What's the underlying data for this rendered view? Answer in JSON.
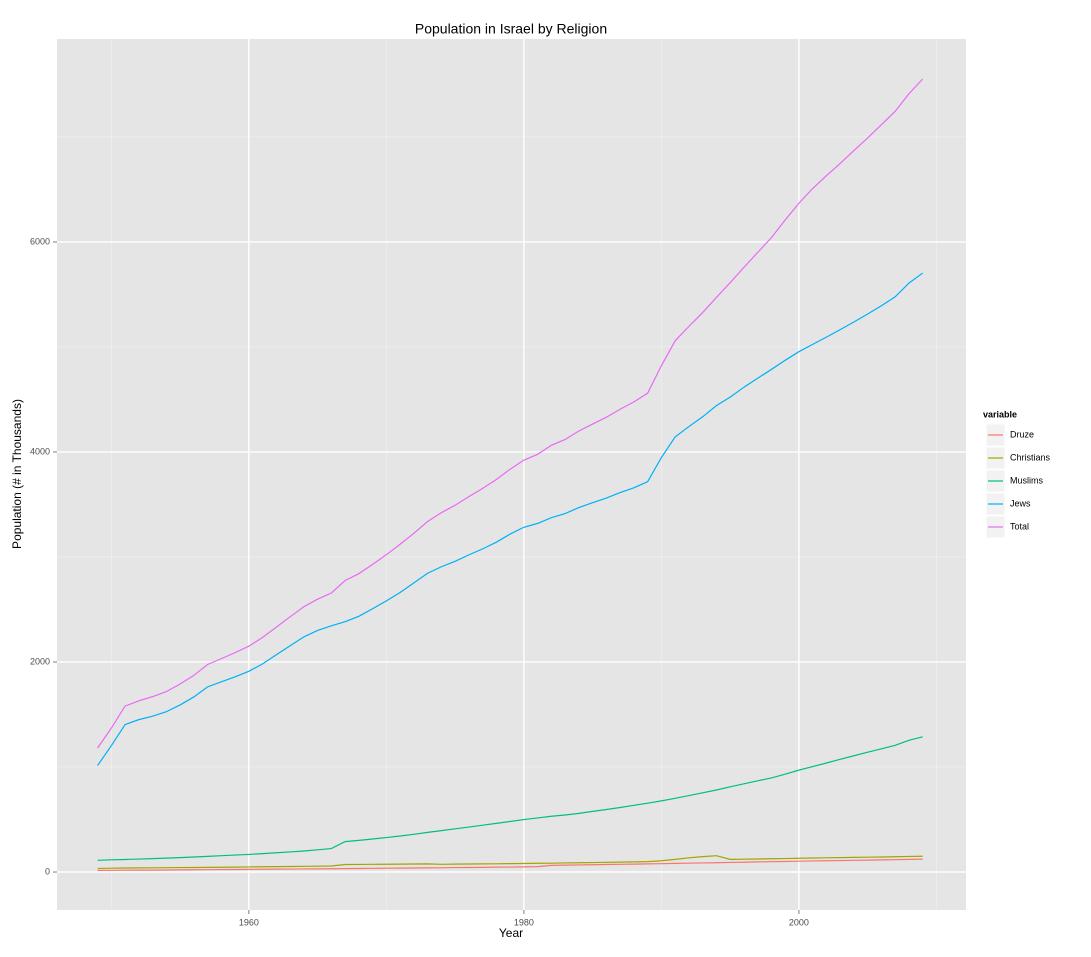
{
  "chart_data": {
    "type": "line",
    "title": "Population in Israel by Religion",
    "x_label": "Year",
    "y_label": "Population (# in Thousands)",
    "legend_title": "variable",
    "legend_position": "right",
    "grid": true,
    "x": [
      1949,
      1950,
      1951,
      1952,
      1953,
      1954,
      1955,
      1956,
      1957,
      1958,
      1959,
      1960,
      1961,
      1962,
      1963,
      1964,
      1965,
      1966,
      1967,
      1968,
      1969,
      1970,
      1971,
      1972,
      1973,
      1974,
      1975,
      1976,
      1977,
      1978,
      1979,
      1980,
      1981,
      1982,
      1983,
      1984,
      1985,
      1986,
      1987,
      1988,
      1989,
      1990,
      1991,
      1992,
      1993,
      1994,
      1995,
      1996,
      1997,
      1998,
      1999,
      2000,
      2001,
      2002,
      2003,
      2004,
      2005,
      2006,
      2007,
      2008,
      2009
    ],
    "xlim": [
      1946.05,
      2012.15
    ],
    "xticks": [
      1960,
      1980,
      2000
    ],
    "ylim": [
      -362,
      7933
    ],
    "yticks": [
      0,
      2000,
      4000,
      6000
    ],
    "series": [
      {
        "name": "Druze",
        "color": "#F8766D",
        "values": [
          15,
          16,
          17,
          18,
          18,
          19,
          20,
          21,
          22,
          23,
          24,
          25,
          26,
          27,
          28,
          29,
          30,
          31,
          32,
          33,
          35,
          36,
          37,
          38,
          39,
          40,
          42,
          43,
          44,
          46,
          47,
          49,
          51,
          63,
          65,
          67,
          69,
          71,
          73,
          75,
          77,
          79,
          82,
          84,
          86,
          88,
          91,
          93,
          96,
          98,
          100,
          103,
          105,
          107,
          109,
          111,
          113,
          115,
          117,
          120,
          122
        ]
      },
      {
        "name": "Christians",
        "color": "#A3A500",
        "values": [
          34,
          36,
          38,
          39,
          40,
          41,
          42,
          43,
          44,
          45,
          46,
          48,
          50,
          51,
          52,
          54,
          55,
          57,
          71,
          72,
          73,
          74,
          75,
          76,
          77,
          73,
          75,
          76,
          77,
          78,
          80,
          81,
          83,
          84,
          86,
          88,
          90,
          92,
          94,
          96,
          99,
          107,
          120,
          135,
          146,
          155,
          120,
          122,
          124,
          126,
          128,
          131,
          133,
          135,
          137,
          139,
          141,
          143,
          145,
          148,
          150
        ]
      },
      {
        "name": "Muslims",
        "color": "#00BF7D",
        "values": [
          111,
          116,
          119,
          123,
          127,
          132,
          137,
          143,
          149,
          155,
          161,
          167,
          175,
          183,
          191,
          200,
          211,
          223,
          289,
          301,
          314,
          328,
          343,
          359,
          377,
          394,
          411,
          428,
          446,
          463,
          481,
          499,
          515,
          531,
          543,
          558,
          577,
          595,
          614,
          635,
          655,
          677,
          702,
          728,
          754,
          781,
          811,
          840,
          868,
          896,
          931,
          970,
          1004,
          1038,
          1073,
          1107,
          1141,
          1173,
          1206,
          1254,
          1287
        ]
      },
      {
        "name": "Jews",
        "color": "#00B0F6",
        "values": [
          1014,
          1203,
          1404,
          1451,
          1484,
          1526,
          1591,
          1667,
          1763,
          1811,
          1859,
          1911,
          1982,
          2069,
          2155,
          2239,
          2300,
          2345,
          2384,
          2435,
          2507,
          2582,
          2662,
          2753,
          2845,
          2907,
          2959,
          3020,
          3077,
          3141,
          3218,
          3283,
          3320,
          3374,
          3413,
          3471,
          3517,
          3561,
          3613,
          3659,
          3717,
          3947,
          4144,
          4242,
          4335,
          4441,
          4522,
          4617,
          4702,
          4786,
          4873,
          4955,
          5025,
          5094,
          5165,
          5238,
          5314,
          5393,
          5478,
          5608,
          5704
        ]
      },
      {
        "name": "Total",
        "color": "#E76BF3",
        "values": [
          1181,
          1370,
          1580,
          1630,
          1670,
          1718,
          1790,
          1872,
          1976,
          2032,
          2089,
          2150,
          2234,
          2332,
          2430,
          2526,
          2598,
          2657,
          2776,
          2841,
          2930,
          3022,
          3121,
          3225,
          3338,
          3422,
          3493,
          3575,
          3653,
          3738,
          3836,
          3922,
          3978,
          4064,
          4119,
          4200,
          4266,
          4331,
          4407,
          4477,
          4560,
          4822,
          5059,
          5196,
          5328,
          5472,
          5612,
          5758,
          5900,
          6041,
          6209,
          6369,
          6509,
          6631,
          6748,
          6870,
          6991,
          7117,
          7244,
          7412,
          7552
        ]
      }
    ]
  }
}
